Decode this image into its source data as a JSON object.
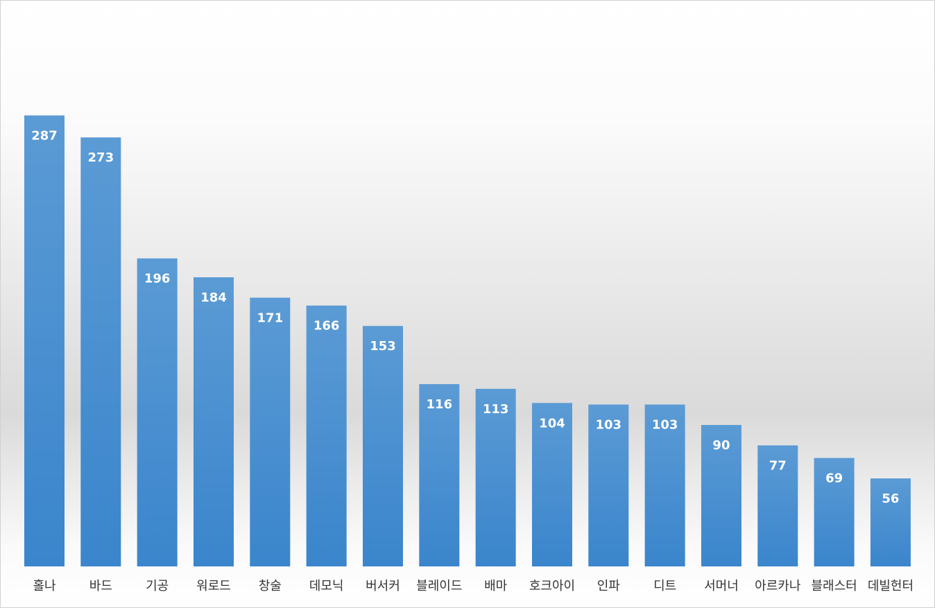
{
  "chart_data": {
    "type": "bar",
    "categories": [
      "홀나",
      "바드",
      "기공",
      "워로드",
      "창술",
      "데모닉",
      "버서커",
      "블레이드",
      "배마",
      "호크아이",
      "인파",
      "디트",
      "서머너",
      "아르카나",
      "블래스터",
      "데빌헌터"
    ],
    "values": [
      287,
      273,
      196,
      184,
      171,
      166,
      153,
      116,
      113,
      104,
      103,
      103,
      90,
      77,
      69,
      56
    ],
    "color": "#4a90d6",
    "ylim": [
      0,
      300
    ]
  }
}
